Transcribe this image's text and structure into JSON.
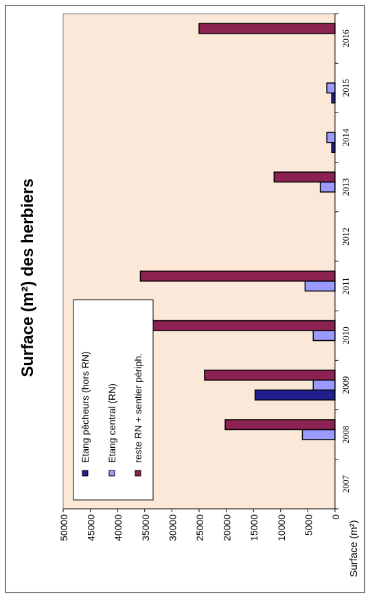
{
  "chart_data": {
    "type": "bar",
    "orientation": "horizontal",
    "rotated_page": true,
    "title": "Surface (m²) des herbiers",
    "ylabel": "Surface (m²)",
    "categories": [
      "2007",
      "2008",
      "2009",
      "2010",
      "2011",
      "2012",
      "2013",
      "2014",
      "2015",
      "2016"
    ],
    "series": [
      {
        "name": "Etang pêcheurs (hors RN)",
        "color": "#1f1f8f",
        "values": [
          0,
          0,
          14700,
          0,
          0,
          0,
          0,
          600,
          600,
          0
        ]
      },
      {
        "name": "Etang central (RN)",
        "color": "#9a9aff",
        "values": [
          0,
          6000,
          4000,
          4000,
          5500,
          0,
          2700,
          1500,
          1500,
          0
        ]
      },
      {
        "name": "reste RN + sentier périph.",
        "color": "#8b2252",
        "values": [
          0,
          20200,
          24000,
          33500,
          35800,
          0,
          11200,
          0,
          0,
          25000
        ]
      }
    ],
    "ylim": [
      0,
      50000
    ],
    "yticks": [
      "0",
      "5000",
      "10000",
      "15000",
      "20000",
      "25000",
      "30000",
      "35000",
      "40000",
      "45000",
      "50000"
    ],
    "legend_position": "top-left (rotated view)",
    "plot_background": "#fbe8d9"
  }
}
